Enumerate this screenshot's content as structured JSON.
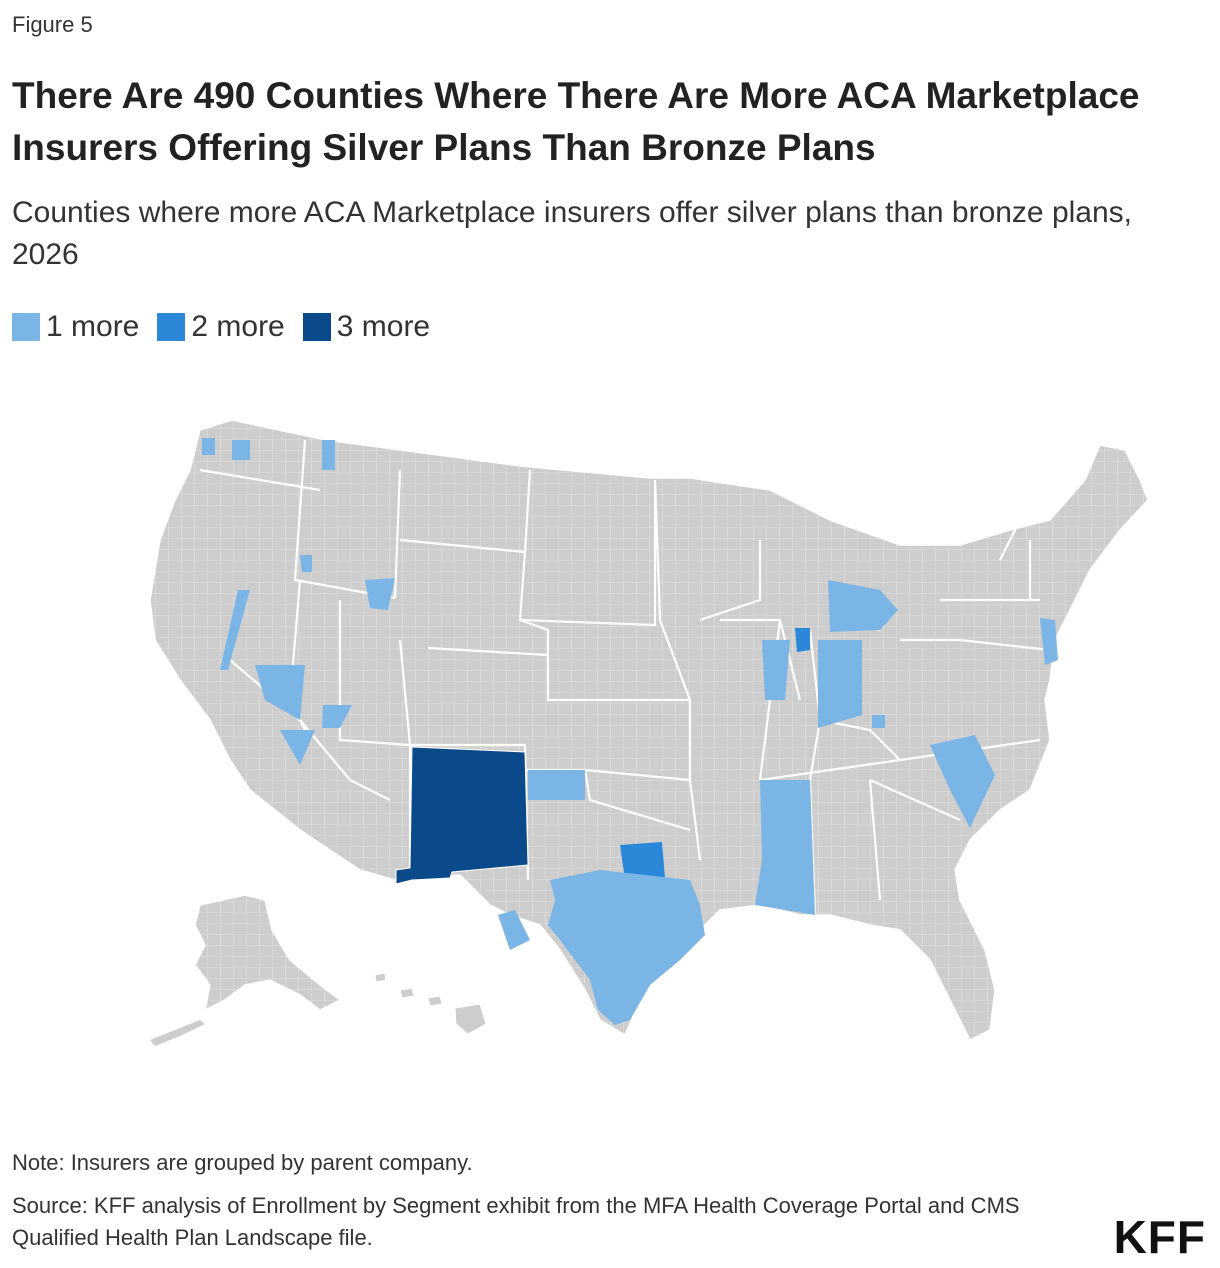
{
  "figure_label": "Figure 5",
  "title": "There Are 490 Counties Where There Are More ACA Marketplace Insurers Offering Silver Plans Than Bronze Plans",
  "subtitle": "Counties where more ACA Marketplace insurers offer silver plans than bronze plans, 2026",
  "legend": [
    {
      "label": "1 more",
      "color": "#7ab5e6"
    },
    {
      "label": "2 more",
      "color": "#2b87d8"
    },
    {
      "label": "3 more",
      "color": "#0a4a8a"
    }
  ],
  "map": {
    "base_color": "#cdcdcd",
    "border_color": "#ffffff"
  },
  "note": "Note: Insurers are grouped by parent company.",
  "source": "Source: KFF analysis of Enrollment by Segment exhibit from the MFA Health Coverage Portal and CMS Qualified Health Plan Landscape file.",
  "logo": "KFF"
}
